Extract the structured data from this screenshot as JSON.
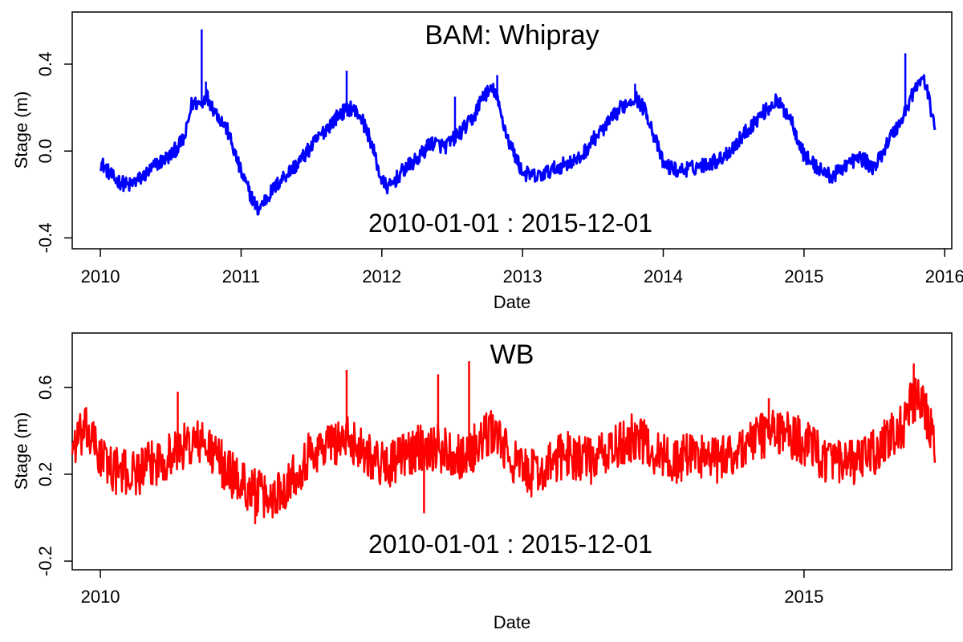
{
  "chart_data": [
    {
      "type": "line",
      "title": "BAM: Whipray",
      "subtitle": "2010-01-01  :  2015-12-01",
      "xlabel": "Date",
      "ylabel": "Stage (m)",
      "xlim": [
        2009.8,
        2016.05
      ],
      "ylim": [
        -0.45,
        0.64
      ],
      "x_ticks": [
        2010,
        2011,
        2012,
        2013,
        2014,
        2015,
        2016
      ],
      "x_tick_labels": [
        "2010",
        "2011",
        "2012",
        "2013",
        "2014",
        "2015",
        "2016"
      ],
      "y_ticks": [
        -0.4,
        0.0,
        0.4
      ],
      "y_tick_labels": [
        "-0.4",
        "0.0",
        "0.4"
      ],
      "series_color": "#0000ff",
      "series": [
        {
          "x": [
            2010.0,
            2010.1,
            2010.2,
            2010.3,
            2010.4,
            2010.5,
            2010.6,
            2010.65,
            2010.72,
            2010.75,
            2010.8,
            2010.9,
            2011.0,
            2011.08,
            2011.12,
            2011.2,
            2011.3,
            2011.4,
            2011.5,
            2011.6,
            2011.7,
            2011.78,
            2011.85,
            2011.92,
            2012.0,
            2012.05,
            2012.15,
            2012.25,
            2012.35,
            2012.45,
            2012.55,
            2012.65,
            2012.72,
            2012.8,
            2012.85,
            2012.9,
            2013.0,
            2013.1,
            2013.2,
            2013.3,
            2013.4,
            2013.5,
            2013.6,
            2013.7,
            2013.8,
            2013.88,
            2014.0,
            2014.1,
            2014.2,
            2014.3,
            2014.4,
            2014.5,
            2014.6,
            2014.7,
            2014.8,
            2014.9,
            2015.0,
            2015.1,
            2015.2,
            2015.3,
            2015.4,
            2015.5,
            2015.6,
            2015.7,
            2015.78,
            2015.85,
            2015.9,
            2015.93
          ],
          "y": [
            -0.05,
            -0.13,
            -0.16,
            -0.12,
            -0.06,
            -0.02,
            0.06,
            0.22,
            0.22,
            0.26,
            0.2,
            0.1,
            -0.1,
            -0.22,
            -0.27,
            -0.2,
            -0.12,
            -0.06,
            0.02,
            0.1,
            0.17,
            0.2,
            0.16,
            0.05,
            -0.14,
            -0.17,
            -0.09,
            -0.04,
            0.04,
            0.02,
            0.08,
            0.15,
            0.26,
            0.28,
            0.16,
            0.05,
            -0.1,
            -0.12,
            -0.09,
            -0.06,
            -0.04,
            0.05,
            0.12,
            0.2,
            0.25,
            0.18,
            -0.06,
            -0.09,
            -0.08,
            -0.06,
            -0.04,
            0.02,
            0.1,
            0.17,
            0.23,
            0.16,
            -0.02,
            -0.08,
            -0.12,
            -0.06,
            -0.03,
            -0.08,
            0.05,
            0.15,
            0.28,
            0.34,
            0.2,
            0.12
          ]
        }
      ],
      "spikes": [
        [
          2010.72,
          0.56
        ],
        [
          2010.75,
          0.32
        ],
        [
          2011.75,
          0.37
        ],
        [
          2012.52,
          0.25
        ],
        [
          2012.82,
          0.35
        ],
        [
          2013.8,
          0.31
        ],
        [
          2015.72,
          0.45
        ]
      ]
    },
    {
      "type": "line",
      "title": "WB",
      "subtitle": "2010-01-01  :  2015-12-01",
      "xlabel": "Date",
      "ylabel": "Stage (m)",
      "xlim": [
        2009.8,
        2016.05
      ],
      "ylim": [
        -0.24,
        0.85
      ],
      "x_ticks": [
        2010,
        2015
      ],
      "x_tick_labels": [
        "2010",
        "2015"
      ],
      "y_ticks": [
        -0.2,
        0.2,
        0.6
      ],
      "y_tick_labels": [
        "-0.2",
        "0.2",
        "0.6"
      ],
      "series_color": "#ff0000",
      "series": [
        {
          "x": [
            2009.8,
            2009.9,
            2010.0,
            2010.1,
            2010.2,
            2010.3,
            2010.4,
            2010.5,
            2010.6,
            2010.7,
            2010.8,
            2010.9,
            2011.0,
            2011.1,
            2011.2,
            2011.3,
            2011.4,
            2011.5,
            2011.6,
            2011.7,
            2011.8,
            2011.9,
            2012.0,
            2012.1,
            2012.2,
            2012.3,
            2012.4,
            2012.5,
            2012.6,
            2012.7,
            2012.8,
            2012.9,
            2013.0,
            2013.1,
            2013.2,
            2013.3,
            2013.4,
            2013.5,
            2013.6,
            2013.7,
            2013.8,
            2013.9,
            2014.0,
            2014.1,
            2014.2,
            2014.3,
            2014.4,
            2014.5,
            2014.6,
            2014.7,
            2014.8,
            2014.9,
            2015.0,
            2015.1,
            2015.2,
            2015.3,
            2015.4,
            2015.5,
            2015.6,
            2015.7,
            2015.78,
            2015.85,
            2015.9,
            2015.93
          ],
          "y": [
            0.33,
            0.4,
            0.28,
            0.22,
            0.2,
            0.22,
            0.26,
            0.29,
            0.33,
            0.35,
            0.3,
            0.22,
            0.16,
            0.12,
            0.08,
            0.14,
            0.22,
            0.3,
            0.33,
            0.36,
            0.35,
            0.3,
            0.24,
            0.26,
            0.3,
            0.33,
            0.32,
            0.3,
            0.28,
            0.35,
            0.4,
            0.28,
            0.22,
            0.2,
            0.24,
            0.3,
            0.28,
            0.26,
            0.3,
            0.33,
            0.38,
            0.32,
            0.28,
            0.26,
            0.3,
            0.28,
            0.26,
            0.3,
            0.34,
            0.38,
            0.4,
            0.38,
            0.35,
            0.3,
            0.25,
            0.24,
            0.26,
            0.3,
            0.36,
            0.42,
            0.55,
            0.5,
            0.4,
            0.3
          ]
        }
      ],
      "spikes": [
        [
          2010.55,
          0.58
        ],
        [
          2011.75,
          0.68
        ],
        [
          2012.4,
          0.66
        ],
        [
          2012.62,
          0.72
        ],
        [
          2014.75,
          0.55
        ],
        [
          2015.78,
          0.71
        ],
        [
          2011.1,
          -0.03
        ],
        [
          2012.3,
          0.02
        ]
      ]
    }
  ]
}
